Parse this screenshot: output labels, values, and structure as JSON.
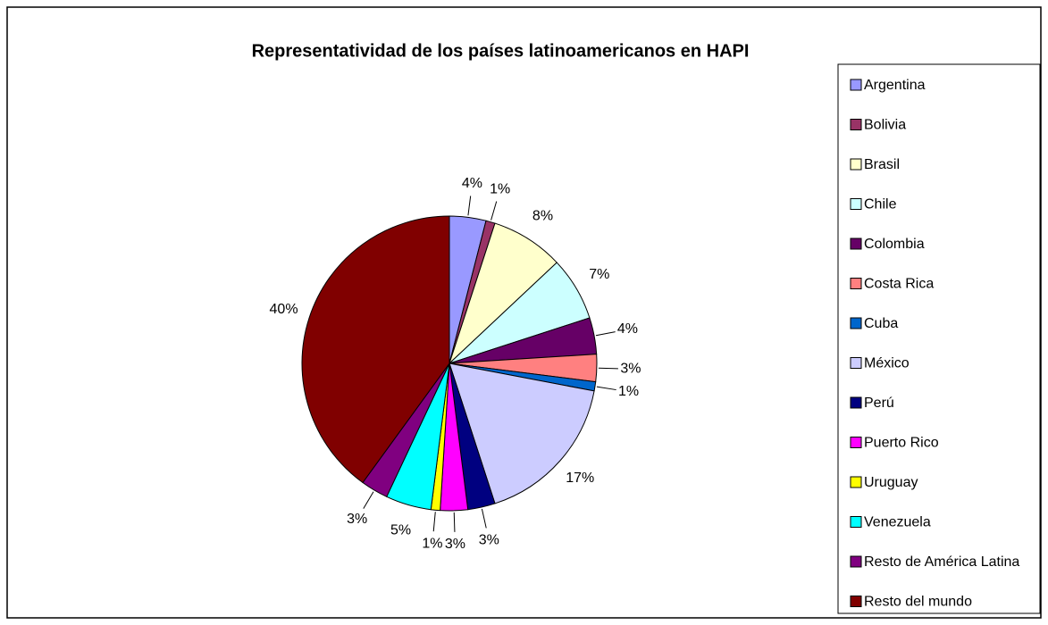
{
  "chart_data": {
    "type": "pie",
    "title": "Representatividad de los países latinoamericanos en HAPI",
    "categories": [
      "Argentina",
      "Bolivia",
      "Brasil",
      "Chile",
      "Colombia",
      "Costa Rica",
      "Cuba",
      "México",
      "Perú",
      "Puerto Rico",
      "Uruguay",
      "Venezuela",
      "Resto de América Latina",
      "Resto del mundo"
    ],
    "values": [
      4,
      1,
      8,
      7,
      4,
      3,
      1,
      17,
      3,
      3,
      1,
      5,
      3,
      40
    ],
    "value_labels": [
      "4%",
      "1%",
      "8%",
      "7%",
      "4%",
      "3%",
      "1%",
      "17%",
      "3%",
      "3%",
      "1%",
      "5%",
      "3%",
      "40%"
    ],
    "colors": [
      "#9999ff",
      "#993366",
      "#ffffcc",
      "#ccffff",
      "#660066",
      "#ff8080",
      "#0066cc",
      "#ccccff",
      "#000080",
      "#ff00ff",
      "#ffff00",
      "#00ffff",
      "#800080",
      "#800000"
    ],
    "legend": "right"
  }
}
